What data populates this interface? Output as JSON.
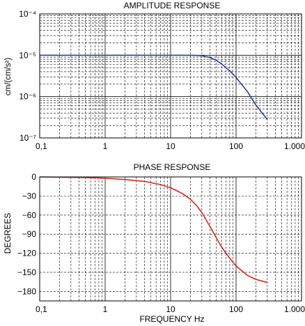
{
  "chart_data": [
    {
      "type": "line",
      "title": "AMPLITUDE RESPONSE",
      "xlabel": "",
      "ylabel": "cm/(cm/s²)",
      "xscale": "log",
      "yscale": "log",
      "xlim": [
        0.1,
        1000
      ],
      "ylim": [
        1e-07,
        0.0001
      ],
      "grid": true,
      "x_ticks": [
        0.1,
        1,
        10,
        100,
        1000
      ],
      "x_tick_labels": [
        "0,1",
        "1",
        "10",
        "100",
        "1.000"
      ],
      "y_ticks": [
        1e-07,
        1e-06,
        1e-05,
        0.0001
      ],
      "y_tick_labels": [
        "10⁻⁷",
        "10⁻⁶",
        "10⁻⁵",
        "10⁻⁴"
      ],
      "series": [
        {
          "color": "#2b3f9e",
          "x": [
            0.1,
            1,
            10,
            20,
            30,
            40,
            50,
            60,
            80,
            100,
            150,
            200,
            300
          ],
          "y": [
            1e-05,
            1e-05,
            1e-05,
            1e-05,
            9.8e-06,
            8.8e-06,
            7.5e-06,
            6.2e-06,
            4.2e-06,
            2.9e-06,
            1.3e-06,
            6.3e-07,
            2.8e-07
          ]
        }
      ]
    },
    {
      "type": "line",
      "title": "PHASE RESPONSE",
      "xlabel": "FREQUENCY Hz",
      "ylabel": "DEGREES",
      "xscale": "log",
      "yscale": "linear",
      "xlim": [
        0.1,
        1000
      ],
      "ylim": [
        -195,
        0
      ],
      "grid": true,
      "x_ticks": [
        0.1,
        1,
        10,
        100,
        1000
      ],
      "x_tick_labels": [
        "0,1",
        "1",
        "10",
        "100",
        "1.000"
      ],
      "y_ticks": [
        0,
        -30,
        -60,
        -90,
        -120,
        -150,
        -180
      ],
      "y_tick_labels": [
        "0",
        "−30",
        "−60",
        "−90",
        "−120",
        "−150",
        "−180"
      ],
      "series": [
        {
          "color": "#d42a1c",
          "x": [
            0.1,
            0.5,
            1,
            2,
            4,
            7,
            10,
            15,
            20,
            25,
            30,
            40,
            50,
            60,
            80,
            100,
            150,
            200,
            300
          ],
          "y": [
            0,
            -1,
            -2,
            -4,
            -7,
            -12,
            -17,
            -26,
            -35,
            -45,
            -56,
            -78,
            -96,
            -110,
            -128,
            -140,
            -155,
            -161,
            -166
          ]
        }
      ]
    }
  ]
}
